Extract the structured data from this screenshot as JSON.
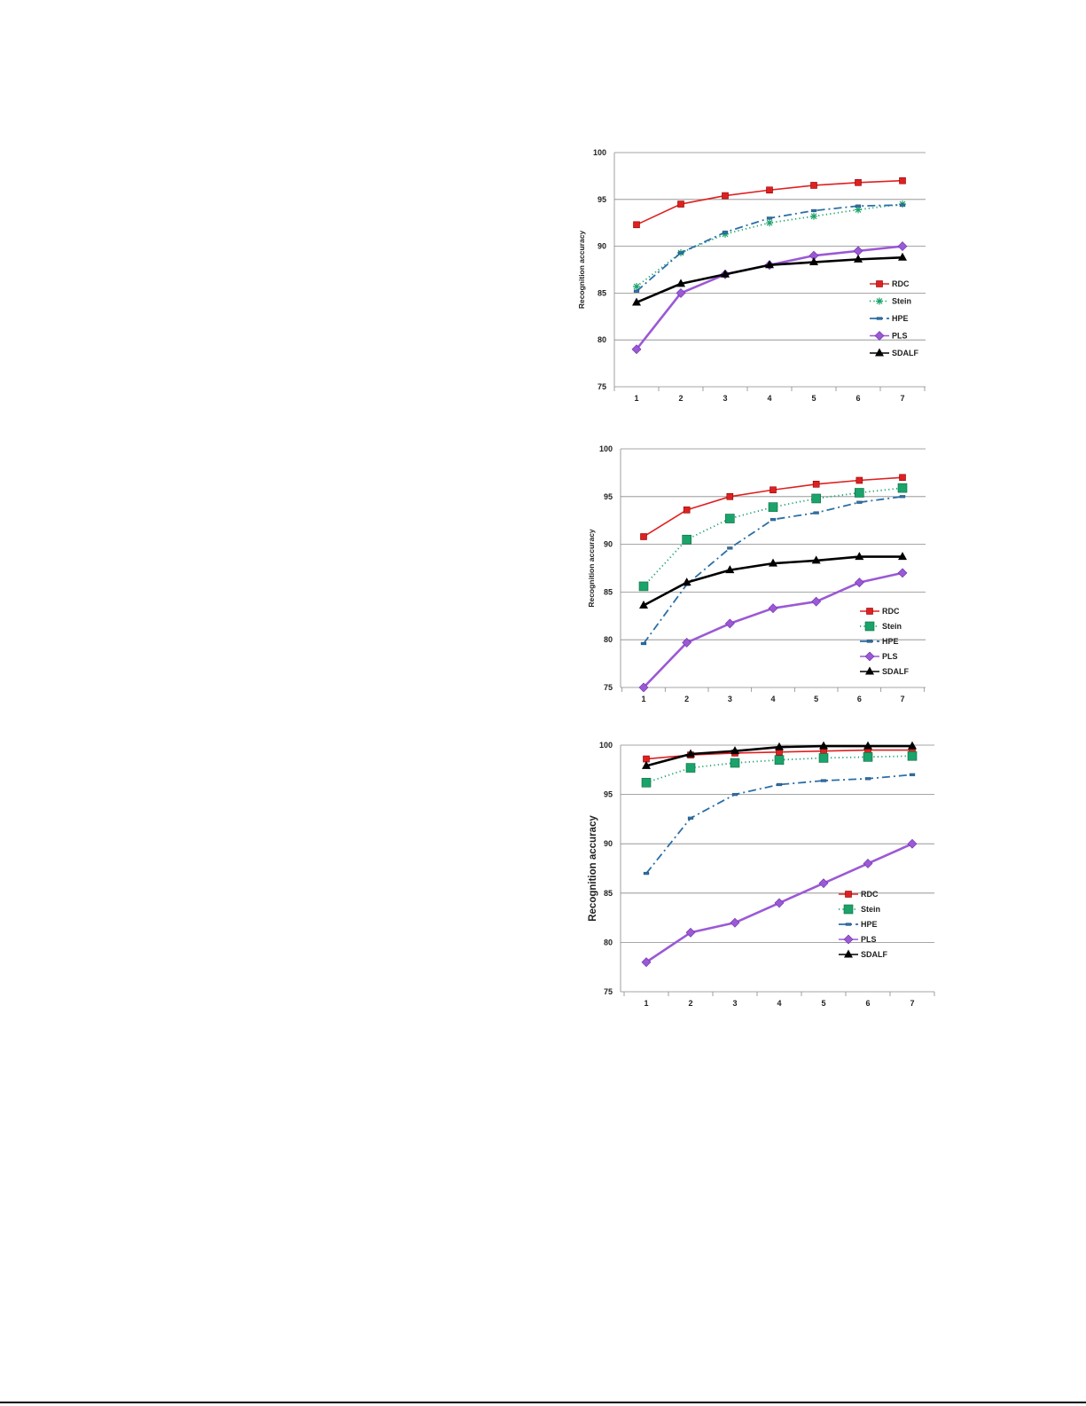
{
  "chart_data": [
    {
      "type": "line",
      "ylabel": "Recognition accuracy",
      "xlabel": "",
      "ylim": [
        75,
        100
      ],
      "yticks": [
        75,
        80,
        85,
        90,
        95,
        100
      ],
      "x": [
        1,
        2,
        3,
        4,
        5,
        6,
        7
      ],
      "legend": "right-lower",
      "series": [
        {
          "name": "RDC",
          "color": "#e02020",
          "marker": "square",
          "dash": "solid",
          "values": [
            92.3,
            94.5,
            95.4,
            96.0,
            96.5,
            96.8,
            97.0
          ]
        },
        {
          "name": "Stein",
          "color": "#1aa36a",
          "marker": "star",
          "dash": "dotted",
          "values": [
            85.7,
            89.3,
            91.3,
            92.5,
            93.2,
            93.9,
            94.5
          ]
        },
        {
          "name": "HPE",
          "color": "#2a6fa8",
          "marker": "dash",
          "dash": "dashdot",
          "values": [
            85.2,
            89.3,
            91.5,
            93.0,
            93.8,
            94.3,
            94.4
          ]
        },
        {
          "name": "PLS",
          "color": "#9b59d6",
          "marker": "diamond",
          "dash": "solid",
          "values": [
            79.0,
            85.0,
            87.0,
            88.0,
            89.0,
            89.5,
            90.0
          ]
        },
        {
          "name": "SDALF",
          "color": "#000000",
          "marker": "triangle",
          "dash": "solid",
          "values": [
            84.0,
            86.0,
            87.0,
            88.0,
            88.3,
            88.6,
            88.8
          ]
        }
      ]
    },
    {
      "type": "line",
      "ylabel": "Recognition accuracy",
      "xlabel": "",
      "ylim": [
        75,
        100
      ],
      "yticks": [
        75,
        80,
        85,
        90,
        95,
        100
      ],
      "x": [
        1,
        2,
        3,
        4,
        5,
        6,
        7
      ],
      "legend": "right-lower",
      "series": [
        {
          "name": "RDC",
          "color": "#e02020",
          "marker": "square",
          "dash": "solid",
          "values": [
            90.8,
            93.6,
            95.0,
            95.7,
            96.3,
            96.7,
            97.0
          ]
        },
        {
          "name": "Stein",
          "color": "#1aa36a",
          "marker": "bigsquare",
          "dash": "dotted",
          "values": [
            85.6,
            90.5,
            92.7,
            93.9,
            94.8,
            95.4,
            95.9
          ]
        },
        {
          "name": "HPE",
          "color": "#2a6fa8",
          "marker": "dash",
          "dash": "dashdot",
          "values": [
            79.6,
            85.8,
            89.6,
            92.6,
            93.3,
            94.4,
            95.0
          ]
        },
        {
          "name": "PLS",
          "color": "#9b59d6",
          "marker": "diamond",
          "dash": "solid",
          "values": [
            75.0,
            79.7,
            81.7,
            83.3,
            84.0,
            86.0,
            87.0
          ]
        },
        {
          "name": "SDALF",
          "color": "#000000",
          "marker": "triangle",
          "dash": "solid",
          "values": [
            83.6,
            86.0,
            87.3,
            88.0,
            88.3,
            88.7,
            88.7
          ]
        }
      ]
    },
    {
      "type": "line",
      "ylabel": "Recognition accuracy",
      "xlabel": "",
      "ylim": [
        75,
        100
      ],
      "yticks": [
        75,
        80,
        85,
        90,
        95,
        100
      ],
      "x": [
        1,
        2,
        3,
        4,
        5,
        6,
        7
      ],
      "legend": "center-right",
      "series": [
        {
          "name": "RDC",
          "color": "#e02020",
          "marker": "square",
          "dash": "solid",
          "values": [
            98.6,
            99.0,
            99.2,
            99.3,
            99.4,
            99.5,
            99.5
          ]
        },
        {
          "name": "Stein",
          "color": "#1aa36a",
          "marker": "bigsquare",
          "dash": "dotted",
          "values": [
            96.2,
            97.7,
            98.2,
            98.5,
            98.7,
            98.8,
            98.9
          ]
        },
        {
          "name": "HPE",
          "color": "#2a6fa8",
          "marker": "dash",
          "dash": "dashdot",
          "values": [
            87.0,
            92.6,
            95.0,
            96.0,
            96.4,
            96.6,
            97.0
          ]
        },
        {
          "name": "PLS",
          "color": "#9b59d6",
          "marker": "diamond",
          "dash": "solid",
          "values": [
            78.0,
            81.0,
            82.0,
            84.0,
            86.0,
            88.0,
            90.0
          ]
        },
        {
          "name": "SDALF",
          "color": "#000000",
          "marker": "triangle",
          "dash": "solid",
          "values": [
            97.9,
            99.1,
            99.4,
            99.8,
            99.9,
            99.9,
            99.9
          ]
        }
      ]
    }
  ]
}
